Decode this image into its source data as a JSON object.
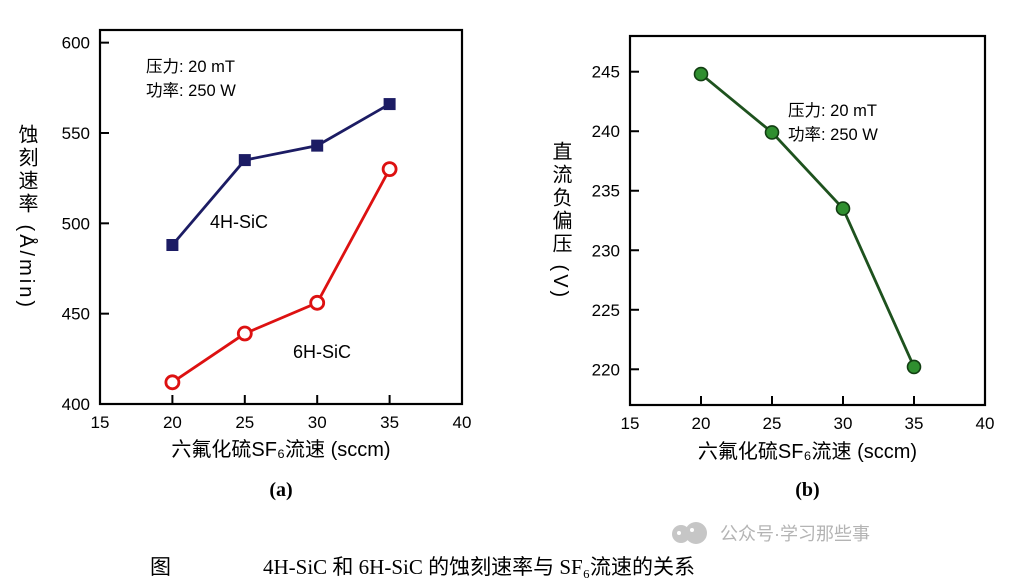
{
  "page": {
    "background": "#ffffff"
  },
  "chart_data": [
    {
      "id": "a",
      "type": "line",
      "xlabel": "六氟化硫SF₆流速 (sccm)",
      "ylabel": "蚀刻速率 (Å/min)",
      "xlim": [
        15,
        40
      ],
      "ylim": [
        400,
        607
      ],
      "xticks": [
        15,
        20,
        25,
        30,
        35,
        40
      ],
      "yticks": [
        400,
        450,
        500,
        550,
        600
      ],
      "grid": false,
      "legend_position": "in-plot-text",
      "annotation": [
        "压力: 20 mT",
        "功率: 250 W"
      ],
      "sub_label": "(a)",
      "series": [
        {
          "name": "4H-SiC",
          "marker": "filled-square",
          "color": "#1c1c64",
          "marker_color": "#1c1c64",
          "x": [
            20,
            25,
            30,
            35
          ],
          "y": [
            488,
            535,
            543,
            566
          ]
        },
        {
          "name": "6H-SiC",
          "marker": "open-circle",
          "color": "#dd1111",
          "marker_color": "#dd1111",
          "x": [
            20,
            25,
            30,
            35
          ],
          "y": [
            412,
            439,
            456,
            530
          ]
        }
      ]
    },
    {
      "id": "b",
      "type": "line",
      "xlabel": "六氟化硫SF₆流速 (sccm)",
      "ylabel": "直流负偏压 (V)",
      "xlim": [
        15,
        40
      ],
      "ylim": [
        217,
        248
      ],
      "xticks": [
        15,
        20,
        25,
        30,
        35,
        40
      ],
      "yticks": [
        220,
        225,
        230,
        235,
        240,
        245
      ],
      "grid": false,
      "legend_position": "none",
      "annotation": [
        "压力: 20 mT",
        "功率: 250 W"
      ],
      "sub_label": "(b)",
      "series": [
        {
          "name": "",
          "marker": "filled-circle",
          "color": "#1e521e",
          "marker_color": "#2f8f2f",
          "x": [
            20,
            25,
            30,
            35
          ],
          "y": [
            244.8,
            239.9,
            233.5,
            220.2
          ]
        }
      ]
    }
  ],
  "caption": {
    "fig_label": "图",
    "text": "4H-SiC 和 6H-SiC 的蚀刻速率与 SF₆流速的关系"
  },
  "watermark": {
    "text": "公众号·学习那些事"
  }
}
